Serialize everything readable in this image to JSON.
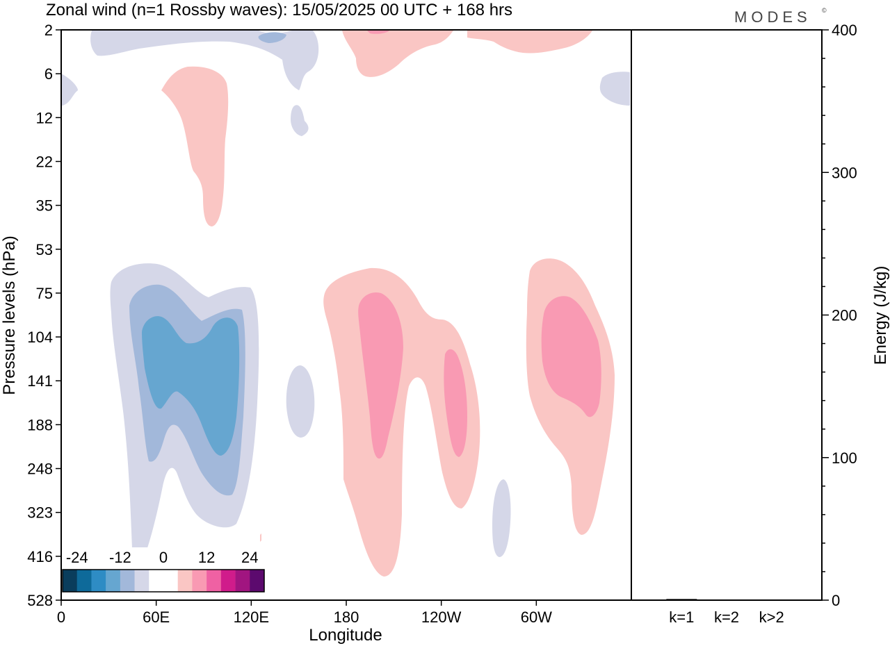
{
  "header": {
    "title": "Zonal wind (n=1 Rossby waves):  15/05/2025  00 UTC  + 168 hrs",
    "logo": "MODES",
    "logo_mark": "©"
  },
  "chart_data": [
    {
      "type": "heatmap",
      "title": "Zonal wind (n=1 Rossby waves):  15/05/2025  00 UTC  + 168 hrs",
      "xlabel": "Longitude",
      "ylabel": "Pressure levels (hPa)",
      "x_ticks": [
        "0",
        "60E",
        "120E",
        "180",
        "120W",
        "60W"
      ],
      "y_ticks": [
        "2",
        "6",
        "12",
        "22",
        "35",
        "53",
        "75",
        "104",
        "141",
        "188",
        "248",
        "323",
        "416",
        "528"
      ],
      "grid": false,
      "colorbar": {
        "labels": [
          "-24",
          "-12",
          "0",
          "12",
          "24"
        ],
        "colors": [
          "#0a3d5c",
          "#0e6a9a",
          "#2e8cc4",
          "#66a6d0",
          "#a2b8da",
          "#d5d7e8",
          "#ffffff",
          "#ffffff",
          "#fac6c4",
          "#f99ab3",
          "#ef61a3",
          "#d01c8b",
          "#a11580",
          "#5c0a6e"
        ],
        "placement": "bottom-left"
      },
      "regions": [
        {
          "sign": "negative",
          "level": 1,
          "color": "#d5d7e8",
          "lon_center": 75,
          "pressure_range": [
            65,
            416
          ]
        },
        {
          "sign": "negative",
          "level": 2,
          "color": "#a2b8da",
          "lon_center": 75,
          "pressure_range": [
            80,
            300
          ]
        },
        {
          "sign": "negative",
          "level": 3,
          "color": "#66a6d0",
          "lon_center": 75,
          "pressure_range": [
            95,
            220
          ]
        },
        {
          "sign": "positive",
          "level": 1,
          "color": "#fac6c4",
          "lon_center": 195,
          "pressure_range": [
            70,
            400
          ]
        },
        {
          "sign": "positive",
          "level": 2,
          "color": "#f99ab3",
          "lon_center": 195,
          "pressure_range": [
            80,
            240
          ]
        },
        {
          "sign": "positive",
          "level": 1,
          "color": "#fac6c4",
          "lon_center": 295,
          "pressure_range": [
            60,
            330
          ]
        },
        {
          "sign": "positive",
          "level": 2,
          "color": "#f99ab3",
          "lon_center": 300,
          "pressure_range": [
            85,
            180
          ]
        },
        {
          "sign": "positive",
          "level": 1,
          "color": "#fac6c4",
          "lon_center": 65,
          "pressure_range": [
            6,
            40
          ]
        }
      ]
    },
    {
      "type": "bar",
      "categories": [
        "k=1",
        "k=2",
        "k>2"
      ],
      "values": [
        0.8,
        0.1,
        0.3
      ],
      "ylabel": "Energy (J/kg)",
      "ylim": [
        0,
        400
      ],
      "y_ticks": [
        "0",
        "100",
        "200",
        "300",
        "400"
      ],
      "axis_side": "right",
      "grid": false
    }
  ]
}
